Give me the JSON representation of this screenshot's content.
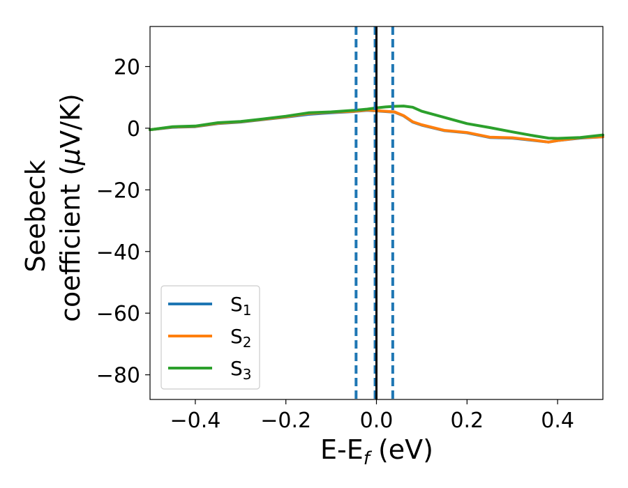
{
  "chart_data": {
    "type": "line",
    "title": "",
    "xlabel": {
      "base": "E-E",
      "sub": "f",
      "suffix": " (eV)"
    },
    "ylabel": {
      "line1": "Seebeck",
      "line2_prefix": "coefficient  (",
      "mu": "μ",
      "line2_suffix": "V/K)"
    },
    "xlim": [
      -0.5,
      0.5
    ],
    "ylim": [
      -88,
      33
    ],
    "xticks": [
      -0.4,
      -0.2,
      0.0,
      0.2,
      0.4
    ],
    "xtick_labels": [
      "−0.4",
      "−0.2",
      "0.0",
      "0.2",
      "0.4"
    ],
    "yticks": [
      20,
      0,
      -20,
      -40,
      -60,
      -80
    ],
    "ytick_labels": [
      "20",
      "0",
      "−20",
      "−40",
      "−60",
      "−80"
    ],
    "grid": false,
    "legend_position": "lower-left",
    "vlines": [
      {
        "x": -0.045,
        "style": "dashed",
        "color": "#1f77b4"
      },
      {
        "x": -0.003,
        "style": "dashed",
        "color": "#1f77b4"
      },
      {
        "x": 0.036,
        "style": "dashed",
        "color": "#1f77b4"
      },
      {
        "x": 0.0,
        "style": "solid",
        "color": "#000000"
      }
    ],
    "x": [
      -0.5,
      -0.45,
      -0.4,
      -0.35,
      -0.3,
      -0.25,
      -0.2,
      -0.15,
      -0.1,
      -0.05,
      -0.02,
      0.0,
      0.02,
      0.04,
      0.06,
      0.08,
      0.1,
      0.15,
      0.2,
      0.25,
      0.3,
      0.35,
      0.38,
      0.4,
      0.45,
      0.5
    ],
    "series": [
      {
        "name": "S",
        "sub": "1",
        "color": "#1f77b4",
        "values": [
          -0.5,
          0.3,
          0.5,
          1.5,
          2.0,
          2.8,
          3.6,
          4.5,
          5.0,
          5.4,
          5.8,
          5.6,
          5.4,
          5.2,
          4.0,
          2.0,
          1.0,
          -0.8,
          -1.5,
          -3.0,
          -3.2,
          -4.0,
          -4.5,
          -4.0,
          -3.2,
          -2.8
        ]
      },
      {
        "name": "S",
        "sub": "2",
        "color": "#ff7f0e",
        "values": [
          -0.5,
          0.4,
          0.6,
          1.6,
          2.1,
          2.9,
          3.7,
          4.8,
          5.2,
          5.5,
          5.9,
          5.7,
          5.5,
          5.3,
          4.1,
          2.1,
          1.1,
          -0.7,
          -1.4,
          -2.9,
          -3.1,
          -3.9,
          -4.5,
          -4.0,
          -3.1,
          -2.8
        ]
      },
      {
        "name": "S",
        "sub": "3",
        "color": "#2ca02c",
        "values": [
          -0.5,
          0.5,
          0.7,
          1.8,
          2.2,
          3.0,
          3.9,
          5.0,
          5.3,
          5.8,
          6.2,
          6.6,
          6.9,
          7.1,
          7.2,
          6.8,
          5.5,
          3.5,
          1.5,
          0.2,
          -1.2,
          -2.5,
          -3.2,
          -3.3,
          -3.0,
          -2.2
        ]
      }
    ]
  }
}
